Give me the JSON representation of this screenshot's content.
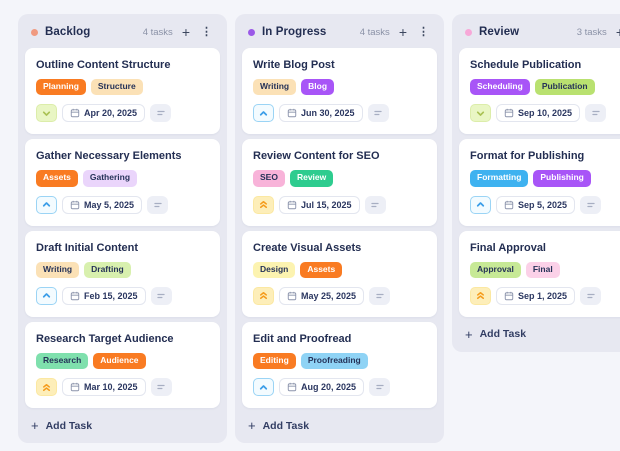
{
  "theme": {
    "page_bg": "#f4f5fa",
    "column_bg": "#e7e8f1",
    "card_bg": "#ffffff",
    "title_color": "#232e52",
    "muted_color": "#8b92a7"
  },
  "priorities": {
    "low": {
      "bg": "#e9f6c4",
      "border": "#dcedaa",
      "icon_color": "#a9c153"
    },
    "medium": {
      "bg": "#f3fbff",
      "border": "#9bd4f5",
      "icon_color": "#3b9de8"
    },
    "high": {
      "bg": "#fdeeb9",
      "border": "#fbe8a2",
      "icon_color": "#f59b1b"
    }
  },
  "header_actions": {
    "add_label": "+",
    "menu_label": "⋮"
  },
  "columns": [
    {
      "name": "Backlog",
      "dot_color": "#f09a80",
      "count_label": "4 tasks",
      "add_task_label": "Add Task",
      "cards": [
        {
          "title": "Outline Content Structure",
          "tags": [
            {
              "label": "Planning",
              "bg": "#f97b22",
              "fg": "#ffffff"
            },
            {
              "label": "Structure",
              "bg": "#fbe1b6",
              "fg": "#253258"
            }
          ],
          "priority": "low",
          "due_date": "Apr 20, 2025"
        },
        {
          "title": "Gather Necessary Elements",
          "tags": [
            {
              "label": "Assets",
              "bg": "#f97b22",
              "fg": "#ffffff"
            },
            {
              "label": "Gathering",
              "bg": "#ead5fb",
              "fg": "#253258"
            }
          ],
          "priority": "medium",
          "due_date": "May 5, 2025"
        },
        {
          "title": "Draft Initial Content",
          "tags": [
            {
              "label": "Writing",
              "bg": "#fbe1b6",
              "fg": "#253258"
            },
            {
              "label": "Drafting",
              "bg": "#d8f0ae",
              "fg": "#253258"
            }
          ],
          "priority": "medium",
          "due_date": "Feb 15, 2025"
        },
        {
          "title": "Research Target Audience",
          "tags": [
            {
              "label": "Research",
              "bg": "#7fe0ad",
              "fg": "#253258"
            },
            {
              "label": "Audience",
              "bg": "#f97b22",
              "fg": "#ffffff"
            }
          ],
          "priority": "high",
          "due_date": "Mar 10, 2025"
        }
      ]
    },
    {
      "name": "In Progress",
      "dot_color": "#9b59e8",
      "count_label": "4 tasks",
      "add_task_label": "Add Task",
      "cards": [
        {
          "title": "Write Blog Post",
          "tags": [
            {
              "label": "Writing",
              "bg": "#fbe1b6",
              "fg": "#253258"
            },
            {
              "label": "Blog",
              "bg": "#a855f7",
              "fg": "#ffffff"
            }
          ],
          "priority": "medium",
          "due_date": "Jun 30, 2025"
        },
        {
          "title": "Review Content for SEO",
          "tags": [
            {
              "label": "SEO",
              "bg": "#f8b3d9",
              "fg": "#253258"
            },
            {
              "label": "Review",
              "bg": "#2ecc8f",
              "fg": "#ffffff"
            }
          ],
          "priority": "high",
          "due_date": "Jul 15, 2025"
        },
        {
          "title": "Create Visual Assets",
          "tags": [
            {
              "label": "Design",
              "bg": "#fcf3b0",
              "fg": "#253258"
            },
            {
              "label": "Assets",
              "bg": "#f97b22",
              "fg": "#ffffff"
            }
          ],
          "priority": "high",
          "due_date": "May 25, 2025"
        },
        {
          "title": "Edit and Proofread",
          "tags": [
            {
              "label": "Editing",
              "bg": "#f97b22",
              "fg": "#ffffff"
            },
            {
              "label": "Proofreading",
              "bg": "#8fd3f5",
              "fg": "#253258"
            }
          ],
          "priority": "medium",
          "due_date": "Aug 20, 2025"
        }
      ]
    },
    {
      "name": "Review",
      "dot_color": "#f7a8d8",
      "count_label": "3 tasks",
      "add_task_label": "Add Task",
      "cards": [
        {
          "title": "Schedule Publication",
          "tags": [
            {
              "label": "Scheduling",
              "bg": "#a855f7",
              "fg": "#ffffff"
            },
            {
              "label": "Publication",
              "bg": "#b9e170",
              "fg": "#253258"
            }
          ],
          "priority": "low",
          "due_date": "Sep 10, 2025"
        },
        {
          "title": "Format for Publishing",
          "tags": [
            {
              "label": "Formatting",
              "bg": "#3eb2f0",
              "fg": "#ffffff"
            },
            {
              "label": "Publishing",
              "bg": "#a855f7",
              "fg": "#ffffff"
            }
          ],
          "priority": "medium",
          "due_date": "Sep 5, 2025"
        },
        {
          "title": "Final Approval",
          "tags": [
            {
              "label": "Approval",
              "bg": "#c7e996",
              "fg": "#253258"
            },
            {
              "label": "Final",
              "bg": "#fbd1e8",
              "fg": "#253258"
            }
          ],
          "priority": "high",
          "due_date": "Sep 1, 2025"
        }
      ]
    }
  ]
}
